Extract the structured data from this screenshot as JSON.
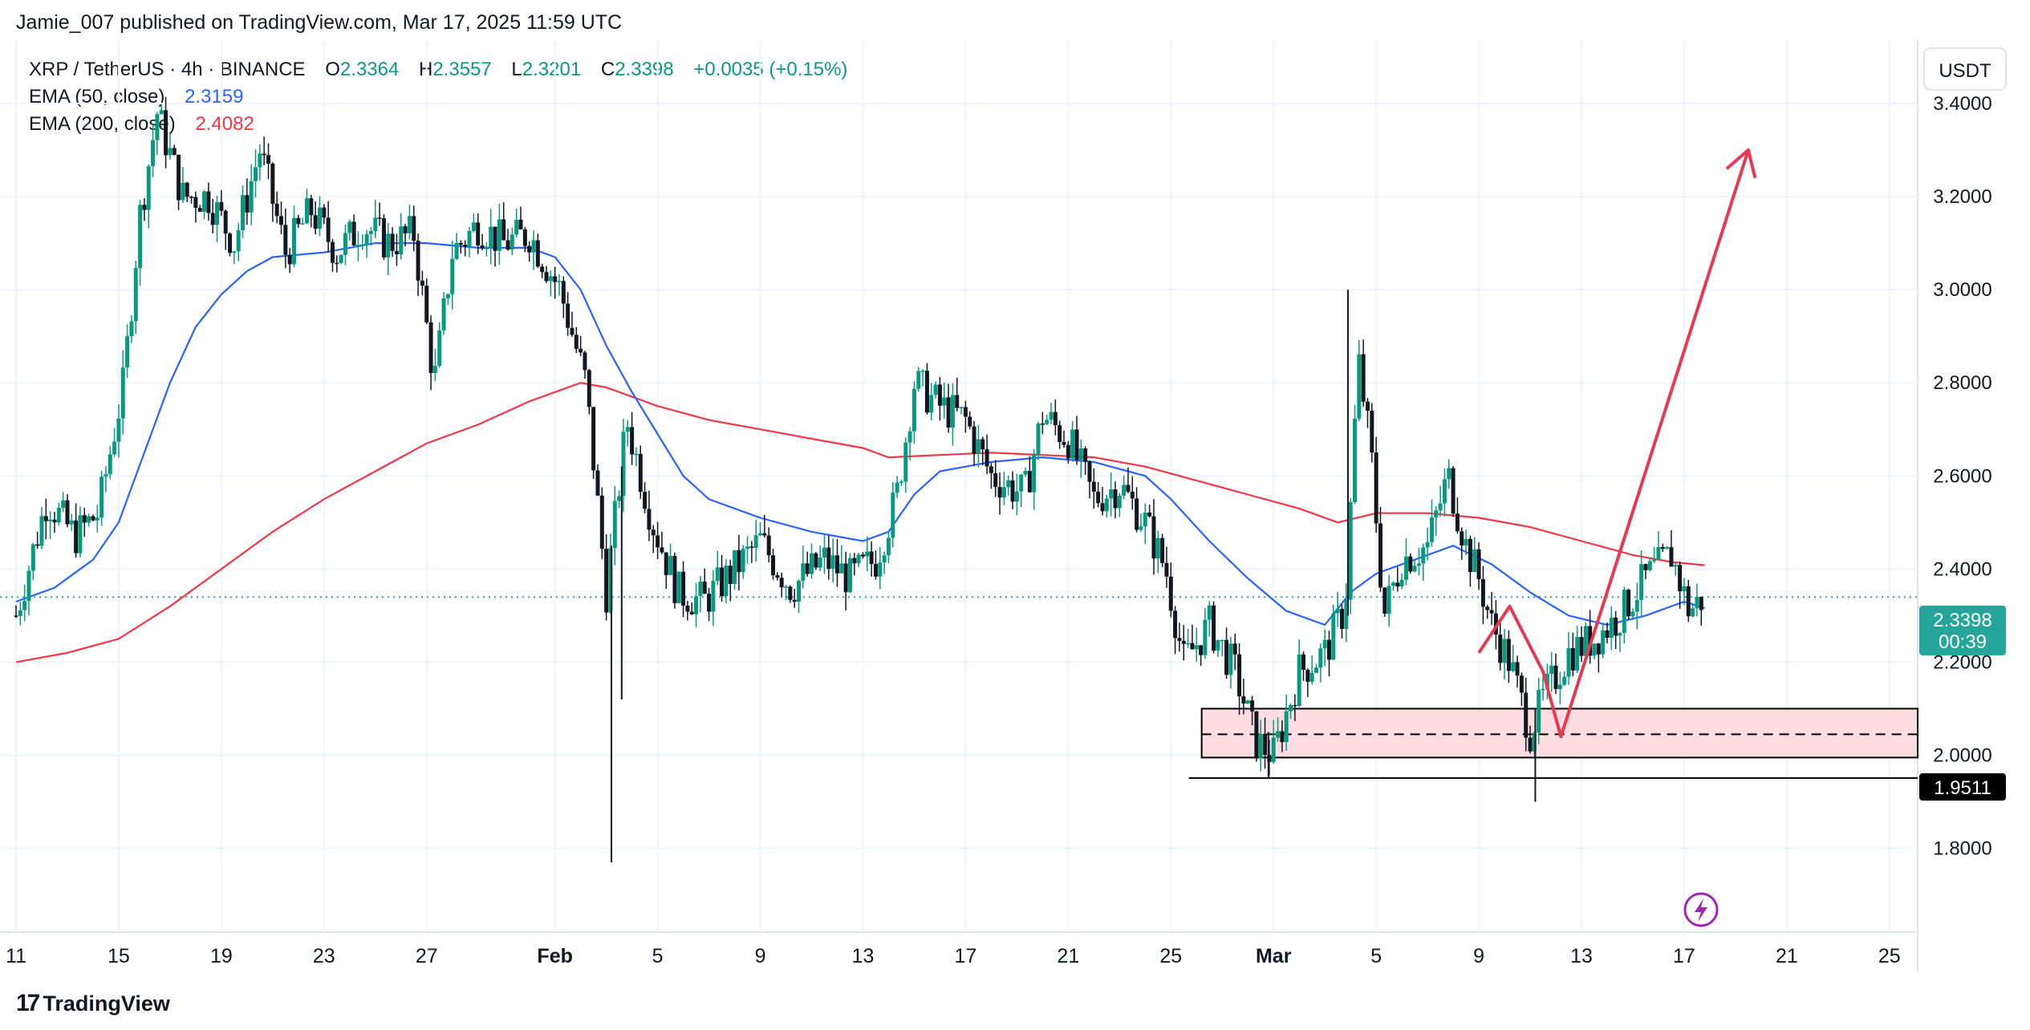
{
  "header": {
    "publisher": "Jamie_007",
    "published_text": "published on TradingView.com, Mar 17, 2025 11:59 UTC"
  },
  "legend": {
    "symbol": "XRP / TetherUS · 4h · BINANCE",
    "o_label": "O",
    "o_value": "2.3364",
    "h_label": "H",
    "h_value": "2.3557",
    "l_label": "L",
    "l_value": "2.3201",
    "c_label": "C",
    "c_value": "2.3398",
    "change": "+0.0035 (+0.15%)",
    "ema50_label": "EMA (50, close)",
    "ema50_value": "2.3159",
    "ema200_label": "EMA (200, close)",
    "ema200_value": "2.4082"
  },
  "colors": {
    "up": "#089981",
    "down": "#131722",
    "ema50": "#2962ff",
    "ema200": "#f23645",
    "arrow": "#e53950",
    "zone_fill": "#fddde1",
    "grid": "#f0f3fa"
  },
  "footer": {
    "brand": "TradingView"
  },
  "chart_data": {
    "type": "candlestick",
    "title": "XRP / TetherUS · 4h · BINANCE",
    "currency": "USDT",
    "ylim": [
      1.62,
      3.45
    ],
    "y_ticks": [
      "3.4000",
      "3.2000",
      "3.0000",
      "2.8000",
      "2.6000",
      "2.4000",
      "2.2000",
      "2.0000",
      "1.8000"
    ],
    "x_ticks": [
      {
        "label": "11",
        "day": 11
      },
      {
        "label": "15",
        "day": 15
      },
      {
        "label": "19",
        "day": 19
      },
      {
        "label": "23",
        "day": 23
      },
      {
        "label": "27",
        "day": 27
      },
      {
        "label": "Feb",
        "day": 32,
        "bold": true
      },
      {
        "label": "5",
        "day": 36
      },
      {
        "label": "9",
        "day": 40
      },
      {
        "label": "13",
        "day": 44
      },
      {
        "label": "17",
        "day": 48
      },
      {
        "label": "21",
        "day": 52
      },
      {
        "label": "25",
        "day": 56
      },
      {
        "label": "Mar",
        "day": 60,
        "bold": true
      },
      {
        "label": "5",
        "day": 64
      },
      {
        "label": "9",
        "day": 68
      },
      {
        "label": "13",
        "day": 72
      },
      {
        "label": "17",
        "day": 76
      },
      {
        "label": "21",
        "day": 80
      },
      {
        "label": "25",
        "day": 84
      }
    ],
    "x_range_days": [
      11,
      85.1
    ],
    "current_price": "2.3398",
    "current_price_value": 2.3398,
    "countdown": "00:39",
    "support_label": "1.9511",
    "support_level": 1.9511,
    "zone": {
      "top": 2.1,
      "mid": 2.045,
      "bottom": 1.995,
      "day_start": 57.2,
      "day_end": 85.1
    },
    "support_line_day_start": 56.7,
    "price_path": [
      [
        11,
        2.3
      ],
      [
        12.2,
        2.55
      ],
      [
        13.3,
        2.47
      ],
      [
        14.2,
        2.52
      ],
      [
        15.2,
        2.8
      ],
      [
        15.8,
        3.15
      ],
      [
        16.5,
        3.38
      ],
      [
        17.5,
        3.2
      ],
      [
        18.5,
        3.2
      ],
      [
        19.5,
        3.1
      ],
      [
        20.5,
        3.3
      ],
      [
        21.5,
        3.08
      ],
      [
        22.5,
        3.17
      ],
      [
        23.5,
        3.08
      ],
      [
        24.5,
        3.14
      ],
      [
        25.5,
        3.1
      ],
      [
        26.5,
        3.12
      ],
      [
        27.3,
        2.8
      ],
      [
        28,
        3.08
      ],
      [
        29,
        3.14
      ],
      [
        30,
        3.1
      ],
      [
        31,
        3.12
      ],
      [
        32.2,
        3.0
      ],
      [
        33.2,
        2.8
      ],
      [
        34,
        2.35
      ],
      [
        34.8,
        2.72
      ],
      [
        35.8,
        2.5
      ],
      [
        36.8,
        2.35
      ],
      [
        37.8,
        2.33
      ],
      [
        39,
        2.4
      ],
      [
        40,
        2.46
      ],
      [
        41.2,
        2.36
      ],
      [
        42.5,
        2.42
      ],
      [
        43.5,
        2.38
      ],
      [
        44.5,
        2.42
      ],
      [
        45.3,
        2.55
      ],
      [
        46,
        2.8
      ],
      [
        47,
        2.75
      ],
      [
        48,
        2.72
      ],
      [
        49,
        2.6
      ],
      [
        50.3,
        2.56
      ],
      [
        51,
        2.73
      ],
      [
        52,
        2.68
      ],
      [
        53,
        2.55
      ],
      [
        54,
        2.58
      ],
      [
        55,
        2.5
      ],
      [
        55.8,
        2.4
      ],
      [
        56.5,
        2.2
      ],
      [
        57.5,
        2.28
      ],
      [
        58.5,
        2.18
      ],
      [
        59.3,
        2.03
      ],
      [
        60,
        2.0
      ],
      [
        61,
        2.18
      ],
      [
        62,
        2.22
      ],
      [
        62.8,
        2.32
      ],
      [
        63.3,
        2.85
      ],
      [
        63.8,
        2.65
      ],
      [
        64.3,
        2.3
      ],
      [
        65,
        2.42
      ],
      [
        66,
        2.45
      ],
      [
        66.8,
        2.6
      ],
      [
        67.5,
        2.45
      ],
      [
        68,
        2.38
      ],
      [
        68.5,
        2.28
      ],
      [
        69.2,
        2.2
      ],
      [
        70,
        2.05
      ],
      [
        70.5,
        2.12
      ],
      [
        71.5,
        2.22
      ],
      [
        72.5,
        2.25
      ],
      [
        73.5,
        2.3
      ],
      [
        74.5,
        2.38
      ],
      [
        75.5,
        2.43
      ],
      [
        76.2,
        2.31
      ],
      [
        76.8,
        2.34
      ]
    ],
    "spikes": [
      {
        "day": 34.2,
        "low": 1.77,
        "high": 2.45
      },
      {
        "day": 34.6,
        "low": 2.12,
        "high": 2.62
      },
      {
        "day": 62.9,
        "low": 2.3,
        "high": 3.0
      },
      {
        "day": 70.2,
        "low": 1.9,
        "high": 2.1
      },
      {
        "day": 59.8,
        "low": 1.95,
        "high": 2.05
      }
    ],
    "series": [
      {
        "name": "EMA (50, close)",
        "value": 2.3159,
        "color": "#2962ff",
        "points": [
          [
            11,
            2.33
          ],
          [
            12.5,
            2.36
          ],
          [
            14,
            2.42
          ],
          [
            15,
            2.5
          ],
          [
            16,
            2.65
          ],
          [
            17,
            2.8
          ],
          [
            18,
            2.92
          ],
          [
            19,
            2.99
          ],
          [
            20,
            3.04
          ],
          [
            21,
            3.07
          ],
          [
            23,
            3.08
          ],
          [
            25,
            3.1
          ],
          [
            27,
            3.1
          ],
          [
            29,
            3.09
          ],
          [
            31,
            3.09
          ],
          [
            32,
            3.07
          ],
          [
            33,
            3.0
          ],
          [
            34,
            2.88
          ],
          [
            35,
            2.78
          ],
          [
            36,
            2.69
          ],
          [
            37,
            2.6
          ],
          [
            38,
            2.55
          ],
          [
            40,
            2.51
          ],
          [
            42,
            2.48
          ],
          [
            44,
            2.46
          ],
          [
            45,
            2.48
          ],
          [
            46,
            2.56
          ],
          [
            47,
            2.61
          ],
          [
            48,
            2.62
          ],
          [
            49,
            2.63
          ],
          [
            51,
            2.64
          ],
          [
            53,
            2.63
          ],
          [
            55,
            2.6
          ],
          [
            56,
            2.55
          ],
          [
            57.5,
            2.46
          ],
          [
            59,
            2.38
          ],
          [
            60.5,
            2.31
          ],
          [
            62,
            2.28
          ],
          [
            63,
            2.35
          ],
          [
            64,
            2.39
          ],
          [
            66,
            2.43
          ],
          [
            67,
            2.45
          ],
          [
            68.5,
            2.41
          ],
          [
            70,
            2.35
          ],
          [
            71.5,
            2.3
          ],
          [
            73,
            2.28
          ],
          [
            74.5,
            2.3
          ],
          [
            76,
            2.33
          ],
          [
            76.8,
            2.3159
          ]
        ]
      },
      {
        "name": "EMA (200, close)",
        "value": 2.4082,
        "color": "#f23645",
        "points": [
          [
            11,
            2.2
          ],
          [
            13,
            2.22
          ],
          [
            15,
            2.25
          ],
          [
            17,
            2.32
          ],
          [
            19,
            2.4
          ],
          [
            21,
            2.48
          ],
          [
            23,
            2.55
          ],
          [
            25,
            2.61
          ],
          [
            27,
            2.67
          ],
          [
            29,
            2.71
          ],
          [
            31,
            2.76
          ],
          [
            32,
            2.78
          ],
          [
            33,
            2.8
          ],
          [
            34,
            2.79
          ],
          [
            35,
            2.77
          ],
          [
            36,
            2.75
          ],
          [
            38,
            2.72
          ],
          [
            40,
            2.7
          ],
          [
            42,
            2.68
          ],
          [
            44,
            2.66
          ],
          [
            45,
            2.64
          ],
          [
            47,
            2.645
          ],
          [
            49,
            2.65
          ],
          [
            51,
            2.645
          ],
          [
            53,
            2.64
          ],
          [
            55,
            2.62
          ],
          [
            57,
            2.59
          ],
          [
            59,
            2.56
          ],
          [
            61,
            2.53
          ],
          [
            62.5,
            2.5
          ],
          [
            64,
            2.52
          ],
          [
            66,
            2.52
          ],
          [
            68,
            2.51
          ],
          [
            70,
            2.49
          ],
          [
            72,
            2.46
          ],
          [
            74,
            2.43
          ],
          [
            75.5,
            2.415
          ],
          [
            76.8,
            2.4082
          ]
        ]
      }
    ],
    "annotation_zigzag": [
      [
        68,
        2.22
      ],
      [
        69.2,
        2.32
      ],
      [
        70.5,
        2.18
      ],
      [
        71.2,
        2.04
      ]
    ],
    "annotation_arrow": [
      [
        71.2,
        2.04
      ],
      [
        78.5,
        3.3
      ]
    ]
  }
}
